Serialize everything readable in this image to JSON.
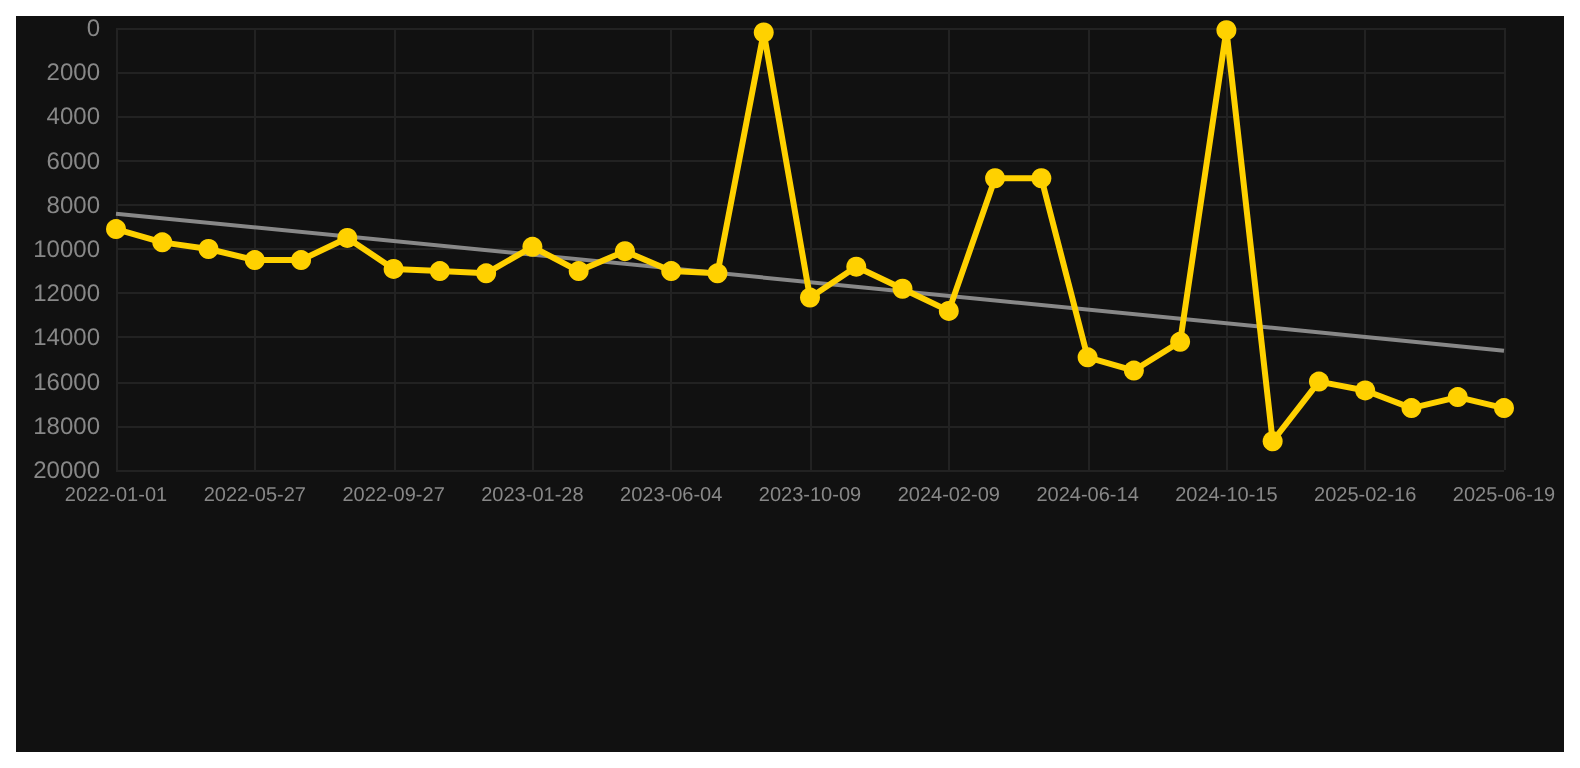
{
  "chart_data": {
    "type": "line",
    "categories": [
      "2022-01-01",
      null,
      null,
      "2022-05-27",
      null,
      null,
      "2022-09-27",
      null,
      null,
      "2023-01-28",
      null,
      null,
      "2023-06-04",
      null,
      null,
      "2023-10-09",
      null,
      null,
      "2024-02-09",
      null,
      null,
      "2024-06-14",
      null,
      null,
      "2024-10-15",
      null,
      null,
      "2025-02-16",
      null,
      null,
      "2025-06-19"
    ],
    "series": [
      {
        "color": "#ffd100",
        "values": [
          9100,
          9700,
          10000,
          10500,
          10500,
          9500,
          10900,
          11000,
          11100,
          9900,
          11000,
          10100,
          11000,
          11100,
          200,
          12200,
          10800,
          11800,
          12800,
          6800,
          6800,
          14900,
          15500,
          14200,
          100,
          18700,
          16000,
          16400,
          17200,
          16700,
          17200
        ]
      },
      {
        "type": "line",
        "color": "#888888",
        "marker": "none",
        "values": [
          8400,
          null,
          null,
          null,
          null,
          null,
          null,
          null,
          null,
          null,
          null,
          null,
          null,
          null,
          null,
          null,
          null,
          null,
          null,
          null,
          null,
          null,
          null,
          null,
          null,
          null,
          null,
          null,
          null,
          null,
          14600
        ]
      }
    ],
    "ylim": [
      20000,
      0
    ],
    "yticks": [
      0,
      2000,
      4000,
      6000,
      8000,
      10000,
      12000,
      14000,
      16000,
      18000,
      20000
    ],
    "grid": true,
    "marker": "circle"
  }
}
